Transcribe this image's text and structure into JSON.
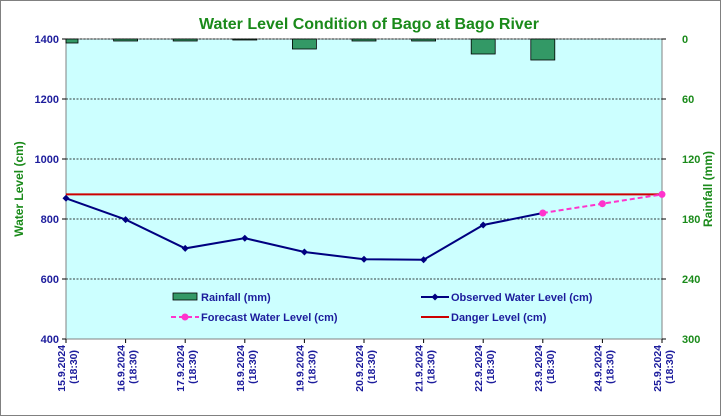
{
  "chart_data": {
    "type": "bar+line",
    "title": "Water Level Condition of Bago at Bago River",
    "ylabel": "Water Level (cm)",
    "y2label": "Rainfall (mm)",
    "ylim": [
      400,
      1400
    ],
    "yticks": [
      400,
      600,
      800,
      1000,
      1200,
      1400
    ],
    "y2lim": [
      300,
      0
    ],
    "y2ticks": [
      0,
      60,
      120,
      180,
      240,
      300
    ],
    "y2_inverted": true,
    "categories": [
      [
        "15.9.2024",
        "(18:30)"
      ],
      [
        "16.9.2024",
        "(18:30)"
      ],
      [
        "17.9.2024",
        "(18:30)"
      ],
      [
        "18.9.2024",
        "(18:30)"
      ],
      [
        "19.9.2024",
        "(18:30)"
      ],
      [
        "20.9.2024",
        "(18:30)"
      ],
      [
        "21.9.2024",
        "(18:30)"
      ],
      [
        "22.9.2024",
        "(18:30)"
      ],
      [
        "23.9.2024",
        "(18:30)"
      ],
      [
        "24.9.2024",
        "(18:30)"
      ],
      [
        "25.9.2024",
        "(18:30)"
      ]
    ],
    "series": [
      {
        "name": "Rainfall (mm)",
        "kind": "bar",
        "axis": "right",
        "color": "#339966",
        "values": [
          4,
          2,
          2,
          1,
          10,
          2,
          2,
          15,
          21,
          null,
          null
        ]
      },
      {
        "name": "Observed Water Level (cm)",
        "kind": "line",
        "axis": "left",
        "color": "#000080",
        "values": [
          869,
          798,
          702,
          736,
          690,
          666,
          664,
          780,
          820,
          null,
          null
        ]
      },
      {
        "name": "Forecast Water Level (cm)",
        "kind": "line-dashed",
        "axis": "left",
        "color": "#ff33cc",
        "values": [
          null,
          null,
          null,
          null,
          null,
          null,
          null,
          null,
          820,
          851,
          882
        ]
      },
      {
        "name": "Danger Level (cm)",
        "kind": "hline",
        "axis": "left",
        "color": "#cc0000",
        "value": 882
      }
    ],
    "grid": true,
    "plot_background": "#ccffff",
    "legend": "inside-bottom"
  }
}
